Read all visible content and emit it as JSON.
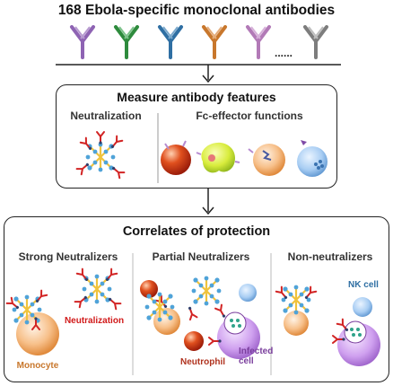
{
  "title": "168 Ebola-specific monoclonal antibodies",
  "ellipsis": "......",
  "measure": {
    "title": "Measure antibody features",
    "neutralization": "Neutralization",
    "fc_effector": "Fc-effector functions"
  },
  "correlates": {
    "title": "Correlates of protection",
    "strong": "Strong Neutralizers",
    "partial": "Partial Neutralizers",
    "non": "Non-neutralizers"
  },
  "labels": {
    "monocyte": "Monocyte",
    "neutralization": "Neutralization",
    "neutrophil": "Neutrophil",
    "infected_cell": "Infected\ncell",
    "nk_cell": "NK cell"
  },
  "colors": {
    "antibody_purple": "#8e63b3",
    "antibody_green": "#2e8b3d",
    "antibody_blue": "#2f6fa3",
    "antibody_orange": "#c8772c",
    "antibody_pink": "#b27ab7",
    "antibody_gray": "#7d7d7d",
    "monocyte_label": "#c8772c",
    "neutralization_label": "#d11a1a",
    "neutrophil_label": "#b0321e",
    "infected_label": "#7a3e9d",
    "nk_label": "#2f6fa3"
  }
}
